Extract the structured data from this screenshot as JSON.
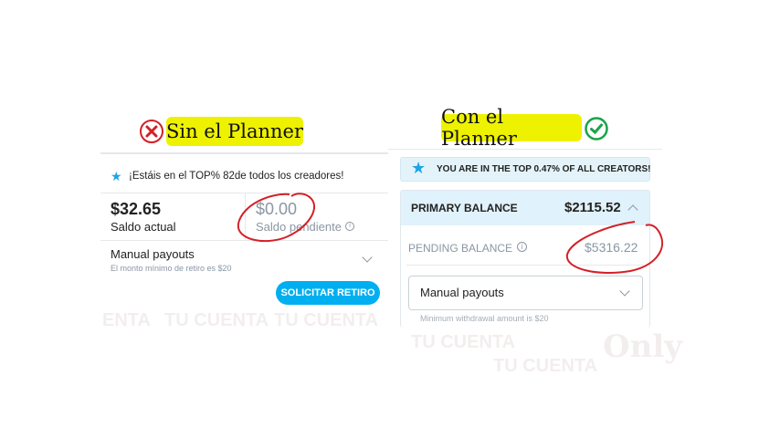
{
  "watermark": {
    "text1": "TU CUENTA",
    "text2": "Only",
    "text3": "ENTA"
  },
  "left": {
    "title": "Sin el Planner",
    "status_icon": "x-circle-icon",
    "banner": "¡Estáis en el TOP% 82de todos los creadores!",
    "current_balance": "$32.65",
    "current_label": "Saldo actual",
    "pending_balance": "$0.00",
    "pending_label": "Saldo pendiente",
    "payout_method": "Manual payouts",
    "min_note": "El monto mínimo de retiro es $20",
    "withdraw_button": "SOLICITAR RETIRO"
  },
  "right": {
    "title": "Con el Planner",
    "status_icon": "check-circle-icon",
    "banner": "YOU ARE IN THE TOP 0.47% OF ALL CREATORS!",
    "primary_label": "PRIMARY BALANCE",
    "primary_balance": "$2115.52",
    "pending_label": "PENDING BALANCE",
    "pending_balance": "$5316.22",
    "payout_method": "Manual payouts",
    "min_note": "Minimum withdrawal amount is $20"
  },
  "colors": {
    "accent": "#00aff0",
    "highlight": "#eef200",
    "annotation": "#d42027",
    "check": "#1aa34a"
  }
}
